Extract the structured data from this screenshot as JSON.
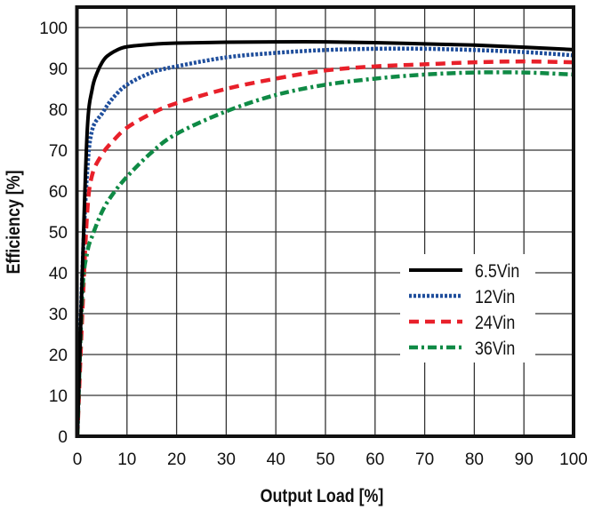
{
  "chart_data": {
    "type": "line",
    "title": "",
    "xlabel": "Output Load [%]",
    "ylabel": "Efficiency [%]",
    "xlim": [
      0,
      100
    ],
    "ylim": [
      0,
      105
    ],
    "xticks": [
      0,
      10,
      20,
      30,
      40,
      50,
      60,
      70,
      80,
      90,
      100
    ],
    "yticks": [
      0,
      10,
      20,
      30,
      40,
      50,
      60,
      70,
      80,
      90,
      100
    ],
    "grid": true,
    "legend_position": "lower-right",
    "series": [
      {
        "name": "6.5Vin",
        "color": "#000000",
        "dash": "solid",
        "x": [
          0,
          1,
          2,
          3,
          4,
          5,
          6,
          8,
          10,
          15,
          20,
          30,
          40,
          50,
          60,
          70,
          80,
          90,
          100
        ],
        "y": [
          0,
          40,
          75,
          85,
          89,
          91.5,
          93,
          94.5,
          95.3,
          95.9,
          96.2,
          96.4,
          96.5,
          96.5,
          96.3,
          96,
          95.7,
          95.2,
          94.6
        ]
      },
      {
        "name": "12Vin",
        "color": "#1f4e9c",
        "dash": "dotted",
        "x": [
          0,
          1,
          2,
          3,
          5,
          7,
          10,
          15,
          20,
          30,
          40,
          50,
          60,
          70,
          80,
          90,
          100
        ],
        "y": [
          0,
          40,
          65,
          75,
          79,
          82.5,
          86,
          89,
          90.5,
          92.7,
          93.8,
          94.5,
          94.8,
          94.8,
          94.5,
          94,
          93.2
        ]
      },
      {
        "name": "24Vin",
        "color": "#e8202a",
        "dash": "dashed",
        "x": [
          0,
          1,
          2,
          3,
          5,
          7,
          10,
          15,
          20,
          30,
          40,
          50,
          60,
          70,
          80,
          90,
          100
        ],
        "y": [
          0,
          30,
          55,
          64,
          69,
          72,
          75.5,
          79,
          81.5,
          85,
          87.5,
          89.5,
          90.5,
          91,
          91.5,
          91.7,
          91.5
        ]
      },
      {
        "name": "36Vin",
        "color": "#0f8a45",
        "dash": "dashdot",
        "x": [
          0,
          1,
          2,
          3,
          5,
          7,
          10,
          15,
          20,
          30,
          40,
          50,
          60,
          70,
          80,
          90,
          100
        ],
        "y": [
          0,
          35,
          45,
          49,
          55,
          59,
          63.5,
          69.5,
          74,
          79.5,
          83.5,
          86,
          87.5,
          88.5,
          89,
          89,
          88.5
        ]
      }
    ]
  }
}
